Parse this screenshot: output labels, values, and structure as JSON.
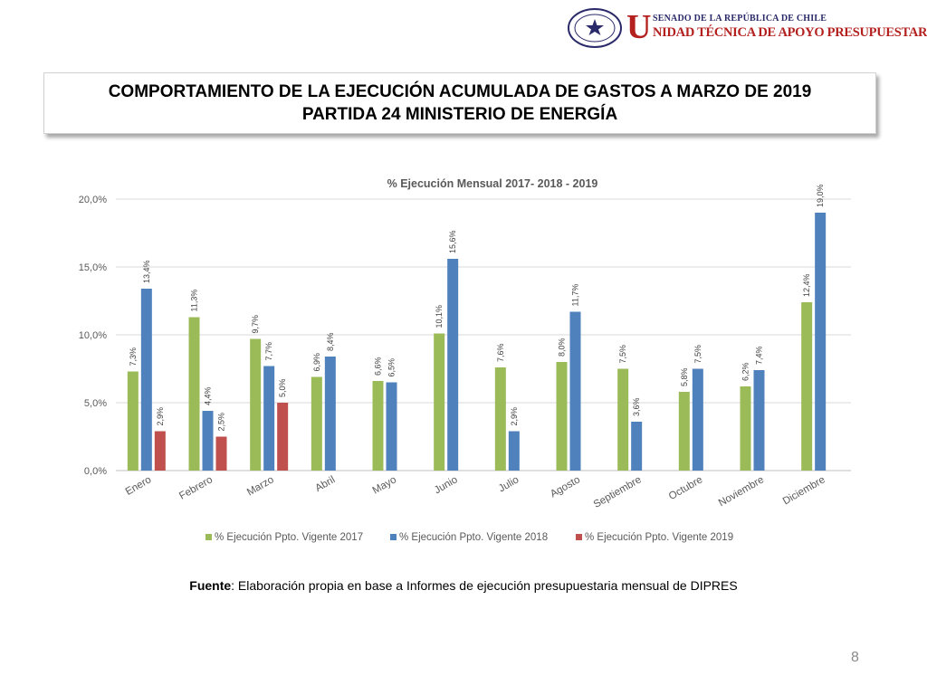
{
  "header": {
    "org_line1": "SENADO DE LA REPÚBLICA DE CHILE",
    "org_initial": "U",
    "org_line2": "NIDAD TÉCNICA DE APOYO PRESUPUESTARIO",
    "seal_text": "REPÚBLICA DE CHILE",
    "seal_bottom": "SENADO"
  },
  "slide": {
    "title_line1": "COMPORTAMIENTO DE LA EJECUCIÓN ACUMULADA DE GASTOS A MARZO DE 2019",
    "title_line2": "PARTIDA 24 MINISTERIO DE ENERGÍA",
    "source_bold": "Fuente",
    "source_text": ": Elaboración propia en base  a Informes de ejecución presupuestaria mensual de DIPRES",
    "page_number": "8"
  },
  "chart_data": {
    "type": "bar",
    "title": "% Ejecución Mensual 2017- 2018 - 2019",
    "categories": [
      "Enero",
      "Febrero",
      "Marzo",
      "Abril",
      "Mayo",
      "Junio",
      "Julio",
      "Agosto",
      "Septiembre",
      "Octubre",
      "Noviembre",
      "Diciembre"
    ],
    "series": [
      {
        "name": "% Ejecución Ppto. Vigente 2017",
        "color": "#9bbb59",
        "values": [
          7.3,
          11.3,
          9.7,
          6.9,
          6.6,
          10.1,
          7.6,
          8.0,
          7.5,
          5.8,
          6.2,
          12.4
        ]
      },
      {
        "name": "% Ejecución Ppto. Vigente 2018",
        "color": "#4f81bd",
        "values": [
          13.4,
          4.4,
          7.7,
          8.4,
          6.5,
          15.6,
          2.9,
          11.7,
          3.6,
          7.5,
          7.4,
          19.0
        ]
      },
      {
        "name": "% Ejecución Ppto. Vigente 2019",
        "color": "#c0504d",
        "values": [
          2.9,
          2.5,
          5.0,
          null,
          null,
          null,
          null,
          null,
          null,
          null,
          null,
          null
        ]
      }
    ],
    "yticks": [
      "0,0%",
      "5,0%",
      "10,0%",
      "15,0%",
      "20,0%"
    ],
    "ylim": [
      0,
      20
    ],
    "grid": true,
    "legend": "bottom"
  }
}
